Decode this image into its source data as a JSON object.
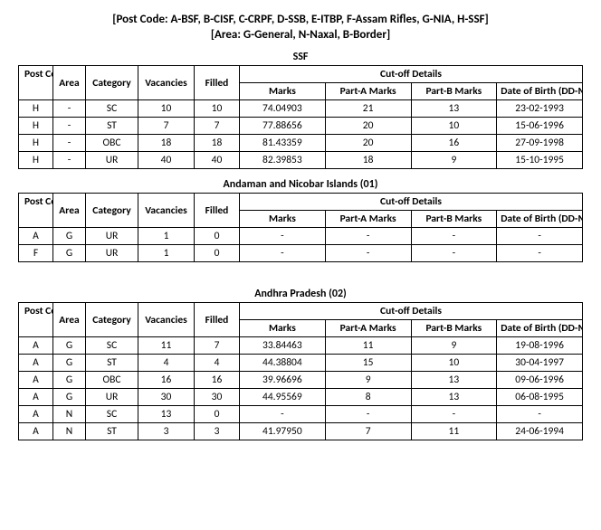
{
  "header": {
    "line1": "[Post Code: A-BSF, B-CISF, C-CRPF, D-SSB, E-ITBP, F-Assam Rifles, G-NIA, H-SSF]",
    "line2": "[Area: G-General, N-Naxal, B-Border]"
  },
  "columns": {
    "post_code": "Post Code",
    "area": "Area",
    "category": "Category",
    "vacancies": "Vacancies",
    "filled": "Filled",
    "cutoff": "Cut-off Details",
    "marks": "Marks",
    "part_a": "Part-A Marks",
    "part_b": "Part-B Marks",
    "dob": "Date of Birth (DD-MM-YYYY)"
  },
  "sections": [
    {
      "title": "SSF",
      "rows": [
        {
          "post": "H",
          "area": "-",
          "cat": "SC",
          "vac": "10",
          "fill": "10",
          "marks": "74.04903",
          "pa": "21",
          "pb": "13",
          "dob": "23-02-1993"
        },
        {
          "post": "H",
          "area": "-",
          "cat": "ST",
          "vac": "7",
          "fill": "7",
          "marks": "77.88656",
          "pa": "20",
          "pb": "10",
          "dob": "15-06-1996"
        },
        {
          "post": "H",
          "area": "-",
          "cat": "OBC",
          "vac": "18",
          "fill": "18",
          "marks": "81.43359",
          "pa": "20",
          "pb": "16",
          "dob": "27-09-1998"
        },
        {
          "post": "H",
          "area": "-",
          "cat": "UR",
          "vac": "40",
          "fill": "40",
          "marks": "82.39853",
          "pa": "18",
          "pb": "9",
          "dob": "15-10-1995"
        }
      ]
    },
    {
      "title": "Andaman and Nicobar Islands (01)",
      "rows": [
        {
          "post": "A",
          "area": "G",
          "cat": "UR",
          "vac": "1",
          "fill": "0",
          "marks": "-",
          "pa": "-",
          "pb": "-",
          "dob": "-"
        },
        {
          "post": "F",
          "area": "G",
          "cat": "UR",
          "vac": "1",
          "fill": "0",
          "marks": "-",
          "pa": "-",
          "pb": "-",
          "dob": "-"
        }
      ]
    },
    {
      "title": "Andhra Pradesh (02)",
      "rows": [
        {
          "post": "A",
          "area": "G",
          "cat": "SC",
          "vac": "11",
          "fill": "7",
          "marks": "33.84463",
          "pa": "11",
          "pb": "9",
          "dob": "19-08-1996"
        },
        {
          "post": "A",
          "area": "G",
          "cat": "ST",
          "vac": "4",
          "fill": "4",
          "marks": "44.38804",
          "pa": "15",
          "pb": "10",
          "dob": "30-04-1997"
        },
        {
          "post": "A",
          "area": "G",
          "cat": "OBC",
          "vac": "16",
          "fill": "16",
          "marks": "39.96696",
          "pa": "9",
          "pb": "13",
          "dob": "09-06-1996"
        },
        {
          "post": "A",
          "area": "G",
          "cat": "UR",
          "vac": "30",
          "fill": "30",
          "marks": "44.95569",
          "pa": "8",
          "pb": "13",
          "dob": "06-08-1995"
        },
        {
          "post": "A",
          "area": "N",
          "cat": "SC",
          "vac": "13",
          "fill": "0",
          "marks": "-",
          "pa": "-",
          "pb": "-",
          "dob": "-"
        },
        {
          "post": "A",
          "area": "N",
          "cat": "ST",
          "vac": "3",
          "fill": "3",
          "marks": "41.97950",
          "pa": "7",
          "pb": "11",
          "dob": "24-06-1994"
        }
      ]
    }
  ]
}
